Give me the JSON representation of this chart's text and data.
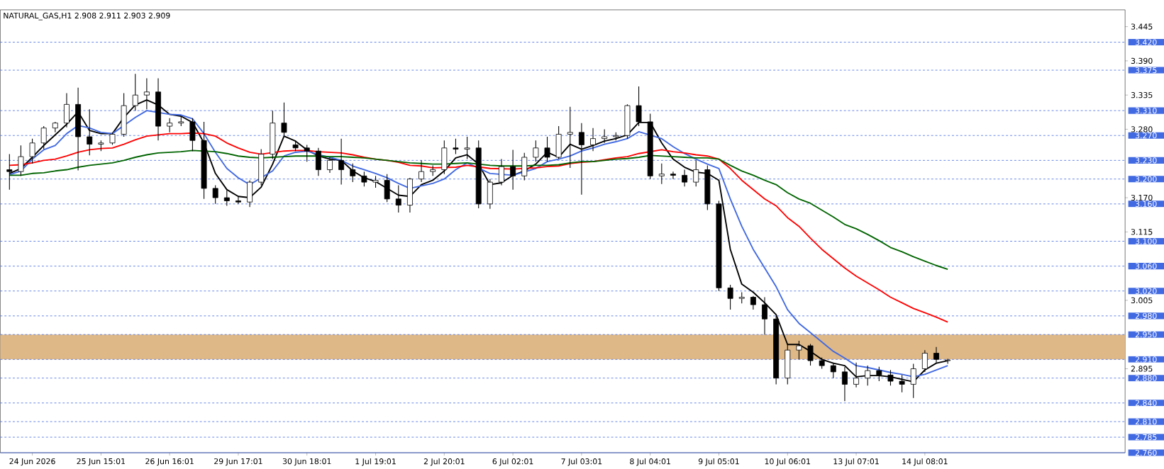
{
  "chart_data": {
    "type": "candlestick",
    "title": "NATURAL_GAS,H1  2.908 2.911 2.903 2.909",
    "categories": [
      null,
      null,
      "24 Jun 2026",
      null,
      null,
      null,
      null,
      null,
      "25 Jun 15:01",
      null,
      null,
      null,
      null,
      null,
      "26 Jun 16:01",
      null,
      null,
      null,
      null,
      null,
      "29 Jun 17:01",
      null,
      null,
      null,
      null,
      null,
      "30 Jun 18:01",
      null,
      null,
      null,
      null,
      null,
      "1 Jul 19:01",
      null,
      null,
      null,
      null,
      null,
      "2 Jul 20:01",
      null,
      null,
      null,
      null,
      null,
      "6 Jul 02:01",
      null,
      null,
      null,
      null,
      null,
      "7 Jul 03:01",
      null,
      null,
      null,
      null,
      null,
      "8 Jul 04:01",
      null,
      null,
      null,
      null,
      null,
      "9 Jul 05:01",
      null,
      null,
      null,
      null,
      null,
      "10 Jul 06:01",
      null,
      null,
      null,
      null,
      null,
      "13 Jul 07:01",
      null,
      null,
      null,
      null,
      null,
      "14 Jul 08:01",
      null,
      null
    ],
    "ohlc": [
      [
        3.215,
        3.24,
        3.183,
        3.212
      ],
      [
        3.212,
        3.254,
        3.205,
        3.236
      ],
      [
        3.236,
        3.265,
        3.225,
        3.258
      ],
      [
        3.258,
        3.285,
        3.248,
        3.282
      ],
      [
        3.282,
        3.292,
        3.275,
        3.29
      ],
      [
        3.29,
        3.338,
        3.283,
        3.32
      ],
      [
        3.32,
        3.347,
        3.214,
        3.268
      ],
      [
        3.268,
        3.312,
        3.238,
        3.256
      ],
      [
        3.256,
        3.262,
        3.245,
        3.258
      ],
      [
        3.258,
        3.275,
        3.255,
        3.272
      ],
      [
        3.272,
        3.338,
        3.268,
        3.318
      ],
      [
        3.318,
        3.369,
        3.31,
        3.335
      ],
      [
        3.335,
        3.362,
        3.312,
        3.34
      ],
      [
        3.34,
        3.362,
        3.262,
        3.285
      ],
      [
        3.285,
        3.298,
        3.275,
        3.29
      ],
      [
        3.29,
        3.3,
        3.285,
        3.292
      ],
      [
        3.292,
        3.298,
        3.245,
        3.262
      ],
      [
        3.262,
        3.292,
        3.168,
        3.185
      ],
      [
        3.185,
        3.19,
        3.16,
        3.17
      ],
      [
        3.17,
        3.182,
        3.157,
        3.165
      ],
      [
        3.165,
        3.172,
        3.16,
        3.163
      ],
      [
        3.163,
        3.198,
        3.155,
        3.195
      ],
      [
        3.195,
        3.248,
        3.19,
        3.24
      ],
      [
        3.24,
        3.31,
        3.232,
        3.29
      ],
      [
        3.29,
        3.323,
        3.27,
        3.275
      ],
      [
        3.255,
        3.262,
        3.245,
        3.25
      ],
      [
        3.25,
        3.255,
        3.228,
        3.245
      ],
      [
        3.245,
        3.25,
        3.205,
        3.215
      ],
      [
        3.215,
        3.235,
        3.21,
        3.23
      ],
      [
        3.23,
        3.265,
        3.191,
        3.215
      ],
      [
        3.215,
        3.225,
        3.195,
        3.205
      ],
      [
        3.205,
        3.212,
        3.188,
        3.195
      ],
      [
        3.195,
        3.205,
        3.186,
        3.198
      ],
      [
        3.198,
        3.208,
        3.163,
        3.168
      ],
      [
        3.168,
        3.19,
        3.146,
        3.158
      ],
      [
        3.158,
        3.202,
        3.146,
        3.2
      ],
      [
        3.2,
        3.23,
        3.195,
        3.212
      ],
      [
        3.212,
        3.222,
        3.205,
        3.215
      ],
      [
        3.215,
        3.262,
        3.208,
        3.25
      ],
      [
        3.25,
        3.265,
        3.24,
        3.248
      ],
      [
        3.248,
        3.268,
        3.232,
        3.25
      ],
      [
        3.25,
        3.262,
        3.153,
        3.16
      ],
      [
        3.16,
        3.2,
        3.152,
        3.195
      ],
      [
        3.195,
        3.232,
        3.19,
        3.22
      ],
      [
        3.22,
        3.247,
        3.183,
        3.205
      ],
      [
        3.205,
        3.242,
        3.198,
        3.235
      ],
      [
        3.235,
        3.262,
        3.228,
        3.25
      ],
      [
        3.25,
        3.268,
        3.228,
        3.235
      ],
      [
        3.235,
        3.285,
        3.232,
        3.272
      ],
      [
        3.272,
        3.316,
        3.218,
        3.275
      ],
      [
        3.275,
        3.29,
        3.175,
        3.255
      ],
      [
        3.255,
        3.282,
        3.245,
        3.265
      ],
      [
        3.265,
        3.28,
        3.258,
        3.268
      ],
      [
        3.268,
        3.275,
        3.262,
        3.27
      ],
      [
        3.27,
        3.32,
        3.265,
        3.318
      ],
      [
        3.318,
        3.349,
        3.285,
        3.292
      ],
      [
        3.292,
        3.305,
        3.2,
        3.205
      ],
      [
        3.205,
        3.225,
        3.192,
        3.208
      ],
      [
        3.208,
        3.212,
        3.2,
        3.206
      ],
      [
        3.206,
        3.215,
        3.188,
        3.195
      ],
      [
        3.195,
        3.23,
        3.188,
        3.215
      ],
      [
        3.215,
        3.222,
        3.15,
        3.16
      ],
      [
        3.16,
        3.165,
        3.02,
        3.025
      ],
      [
        3.025,
        3.03,
        2.99,
        3.008
      ],
      [
        3.008,
        3.018,
        3.0,
        3.01
      ],
      [
        3.01,
        3.012,
        2.99,
        2.998
      ],
      [
        2.998,
        3.01,
        2.95,
        2.975
      ],
      [
        2.975,
        2.98,
        2.87,
        2.88
      ],
      [
        2.88,
        2.935,
        2.87,
        2.925
      ],
      [
        2.925,
        2.94,
        2.91,
        2.932
      ],
      [
        2.932,
        2.935,
        2.9,
        2.908
      ],
      [
        2.908,
        2.913,
        2.895,
        2.9
      ],
      [
        2.9,
        2.905,
        2.88,
        2.89
      ],
      [
        2.89,
        2.898,
        2.843,
        2.87
      ],
      [
        2.87,
        2.905,
        2.865,
        2.88
      ],
      [
        2.88,
        2.9,
        2.868,
        2.892
      ],
      [
        2.892,
        2.898,
        2.875,
        2.885
      ],
      [
        2.885,
        2.893,
        2.868,
        2.875
      ],
      [
        2.875,
        2.885,
        2.857,
        2.87
      ],
      [
        2.87,
        2.903,
        2.848,
        2.895
      ],
      [
        2.895,
        2.925,
        2.89,
        2.92
      ],
      [
        2.92,
        2.93,
        2.905,
        2.91
      ],
      [
        2.908,
        2.911,
        2.903,
        2.909
      ]
    ],
    "series": [
      {
        "type": "line",
        "color": "#000000",
        "values": [
          3.209,
          3.217,
          3.235,
          3.254,
          3.271,
          3.288,
          3.308,
          3.278,
          3.273,
          3.273,
          3.299,
          3.319,
          3.327,
          3.319,
          3.304,
          3.301,
          3.291,
          3.258,
          3.209,
          3.183,
          3.172,
          3.17,
          3.187,
          3.224,
          3.269,
          3.261,
          3.247,
          3.237,
          3.232,
          3.23,
          3.213,
          3.202,
          3.196,
          3.185,
          3.174,
          3.172,
          3.191,
          3.198,
          3.213,
          3.234,
          3.239,
          3.224,
          3.191,
          3.194,
          3.206,
          3.213,
          3.224,
          3.243,
          3.235,
          3.256,
          3.248,
          3.254,
          3.261,
          3.265,
          3.271,
          3.291,
          3.291,
          3.258,
          3.232,
          3.219,
          3.211,
          3.209,
          3.198,
          3.087,
          3.031,
          3.018,
          3.001,
          2.982,
          2.934,
          2.934,
          2.923,
          2.91,
          2.904,
          2.9,
          2.882,
          2.884,
          2.884,
          2.882,
          2.878,
          2.874,
          2.893,
          2.904,
          2.908
        ]
      },
      {
        "type": "line",
        "color": "#4169e1",
        "values": [
          3.207,
          3.213,
          3.232,
          3.247,
          3.254,
          3.273,
          3.286,
          3.282,
          3.275,
          3.273,
          null,
          3.299,
          3.31,
          null,
          3.304,
          3.303,
          3.297,
          3.273,
          3.243,
          3.217,
          3.202,
          3.191,
          null,
          3.213,
          3.237,
          3.243,
          3.245,
          3.239,
          3.235,
          3.23,
          3.221,
          3.215,
          3.209,
          3.202,
          3.193,
          3.185,
          3.189,
          3.193,
          3.2,
          3.215,
          3.226,
          null,
          3.209,
          null,
          3.206,
          null,
          3.217,
          3.228,
          3.232,
          3.237,
          3.245,
          3.25,
          3.256,
          3.26,
          3.265,
          3.276,
          null,
          3.265,
          3.252,
          3.241,
          3.232,
          3.224,
          3.217,
          3.168,
          3.124,
          3.087,
          3.057,
          3.027,
          2.99,
          2.968,
          2.953,
          2.938,
          2.923,
          2.912,
          2.9,
          2.897,
          2.893,
          2.889,
          2.886,
          2.882,
          2.886,
          2.893,
          2.9
        ]
      },
      {
        "type": "line",
        "color": "#ff0000",
        "values": [
          3.222,
          3.223,
          3.226,
          3.23,
          3.232,
          3.237,
          3.243,
          3.247,
          3.249,
          3.25,
          3.256,
          3.263,
          3.269,
          3.271,
          3.273,
          3.273,
          3.274,
          3.273,
          3.269,
          3.258,
          3.25,
          3.243,
          3.24,
          null,
          3.245,
          3.246,
          3.246,
          3.244,
          3.243,
          3.242,
          3.239,
          3.235,
          3.232,
          3.23,
          3.227,
          3.222,
          3.221,
          3.218,
          null,
          3.219,
          3.222,
          null,
          3.217,
          null,
          3.216,
          null,
          3.218,
          3.22,
          3.221,
          3.225,
          3.227,
          3.228,
          3.231,
          3.234,
          3.236,
          3.241,
          null,
          3.247,
          3.244,
          3.242,
          3.239,
          3.237,
          3.232,
          3.217,
          3.198,
          3.183,
          3.168,
          3.157,
          3.138,
          3.124,
          3.105,
          3.087,
          3.072,
          3.057,
          3.044,
          3.033,
          3.022,
          3.01,
          3.001,
          2.992,
          2.985,
          2.978,
          2.97
        ]
      },
      {
        "type": "line",
        "color": "#006400",
        "values": [
          3.206,
          3.206,
          3.209,
          3.21,
          3.213,
          3.215,
          3.219,
          3.222,
          3.224,
          3.226,
          3.23,
          3.235,
          3.239,
          3.242,
          3.243,
          3.244,
          3.246,
          null,
          3.244,
          3.241,
          3.237,
          3.235,
          3.234,
          3.235,
          3.236,
          3.237,
          3.237,
          3.237,
          3.236,
          3.236,
          3.235,
          3.234,
          3.232,
          3.23,
          3.228,
          3.226,
          3.225,
          3.224,
          3.224,
          3.225,
          3.226,
          3.224,
          3.222,
          3.221,
          3.221,
          3.221,
          3.222,
          3.222,
          3.223,
          3.226,
          3.228,
          3.228,
          3.23,
          3.232,
          3.233,
          3.235,
          3.238,
          3.237,
          3.236,
          3.235,
          3.234,
          3.234,
          3.232,
          3.222,
          3.213,
          3.206,
          3.198,
          3.191,
          3.178,
          3.168,
          3.161,
          3.15,
          3.139,
          3.127,
          3.12,
          3.111,
          3.101,
          3.09,
          3.083,
          3.075,
          3.068,
          3.061,
          3.055
        ]
      }
    ],
    "ylim": [
      2.76,
      3.472
    ],
    "yticks": [
      3.445,
      {
        "value": 3.39,
        "label": "3.390"
      },
      3.335,
      {
        "value": 3.28,
        "label": "3.280"
      },
      {
        "value": 3.17,
        "label": "3.170"
      },
      3.115,
      3.005,
      2.895
    ],
    "ref_lines": [
      {
        "axis": "y",
        "value": 3.42,
        "label": "3.420",
        "color": "#4169e1",
        "line_style": "dashed"
      },
      {
        "axis": "y",
        "value": 3.375,
        "label": "3.375",
        "color": "#4169e1",
        "line_style": "dashed"
      },
      {
        "axis": "y",
        "value": 3.31,
        "label": "3.310",
        "color": "#4169e1",
        "line_style": "dashed"
      },
      {
        "axis": "y",
        "value": 3.27,
        "label": "3.270",
        "color": "#4169e1",
        "line_style": "dashed"
      },
      {
        "axis": "y",
        "value": 3.23,
        "label": "3.230",
        "color": "#4169e1",
        "line_style": "dashed"
      },
      {
        "axis": "y",
        "value": 3.2,
        "label": "3.200",
        "color": "#4169e1",
        "line_style": "dashed"
      },
      {
        "axis": "y",
        "value": 3.16,
        "label": "3.160",
        "color": "#4169e1",
        "line_style": "dashed"
      },
      {
        "axis": "y",
        "value": 3.1,
        "label": "3.100",
        "color": "#4169e1",
        "line_style": "dashed"
      },
      {
        "axis": "y",
        "value": 3.06,
        "label": "3.060",
        "color": "#4169e1",
        "line_style": "dashed"
      },
      {
        "axis": "y",
        "value": 3.02,
        "label": "3.020",
        "color": "#4169e1",
        "line_style": "dashed"
      },
      {
        "axis": "y",
        "value": 2.98,
        "label": "2.980",
        "color": "#4169e1",
        "line_style": "dashed"
      },
      {
        "axis": "y",
        "value": 2.95,
        "label": "2.950",
        "color": "#4169e1",
        "line_style": "dashed"
      },
      {
        "axis": "y",
        "value": 2.91,
        "label": "2.910",
        "color": "#4169e1",
        "line_style": "dashed"
      },
      {
        "axis": "y",
        "value": 2.88,
        "label": "2.880",
        "color": "#4169e1",
        "line_style": "dashed"
      },
      {
        "axis": "y",
        "value": 2.84,
        "label": "2.840",
        "color": "#4169e1",
        "line_style": "dashed"
      },
      {
        "axis": "y",
        "value": 2.81,
        "label": "2.810",
        "color": "#4169e1",
        "line_style": "dashed"
      },
      {
        "axis": "y",
        "value": 2.785,
        "label": "2.785",
        "color": "#4169e1",
        "line_style": "dashed"
      },
      {
        "axis": "y",
        "value": 2.76,
        "label": "2.760",
        "color": "#4169e1",
        "line_style": "solid"
      }
    ],
    "bands": [
      {
        "axis": "y",
        "from": 2.91,
        "to": 2.95,
        "color": "#deb887"
      }
    ]
  }
}
